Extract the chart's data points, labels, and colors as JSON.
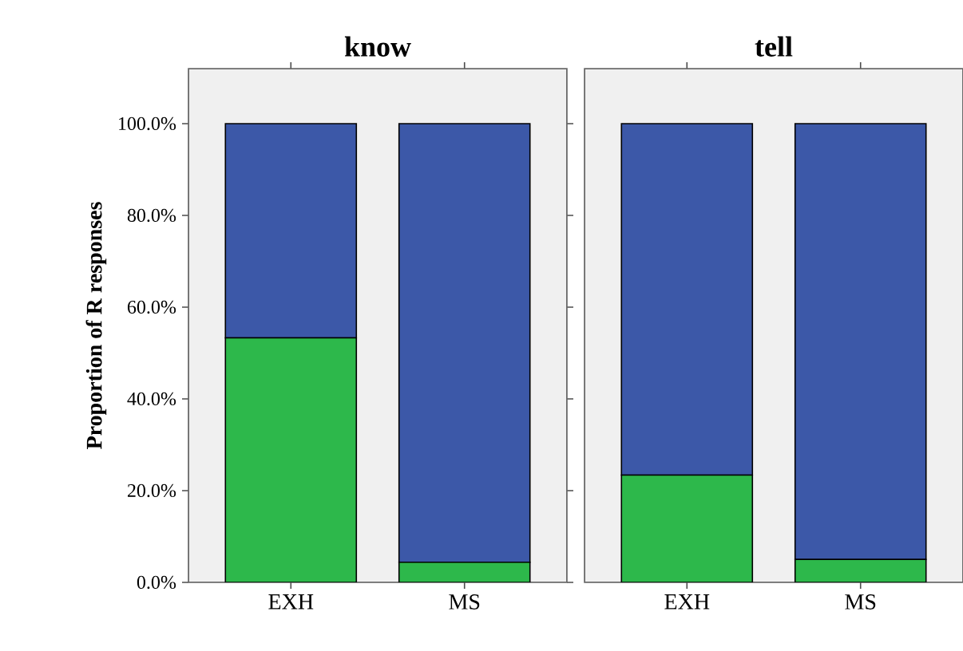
{
  "chart_data": [
    {
      "type": "bar",
      "title": "know",
      "ylabel": "Proportion of R responses",
      "categories": [
        "EXH",
        "MS"
      ],
      "stacked": true,
      "series": [
        {
          "color": "#2db84b",
          "values": [
            53.3,
            4.4
          ]
        },
        {
          "color": "#3c58a8",
          "values": [
            46.7,
            95.6
          ]
        }
      ],
      "ylim": [
        0,
        112
      ],
      "yticks": [
        {
          "value": 0,
          "label": "0.0%"
        },
        {
          "value": 20,
          "label": "20.0%"
        },
        {
          "value": 40,
          "label": "40.0%"
        },
        {
          "value": 60,
          "label": "60.0%"
        },
        {
          "value": 80,
          "label": "80.0%"
        },
        {
          "value": 100,
          "label": "100.0%"
        }
      ]
    },
    {
      "type": "bar",
      "title": "tell",
      "categories": [
        "EXH",
        "MS"
      ],
      "stacked": true,
      "series": [
        {
          "color": "#2db84b",
          "values": [
            23.4,
            5.0
          ]
        },
        {
          "color": "#3c58a8",
          "values": [
            76.6,
            95.0
          ]
        }
      ],
      "ylim": [
        0,
        112
      ],
      "tick_labels": "x"
    }
  ]
}
